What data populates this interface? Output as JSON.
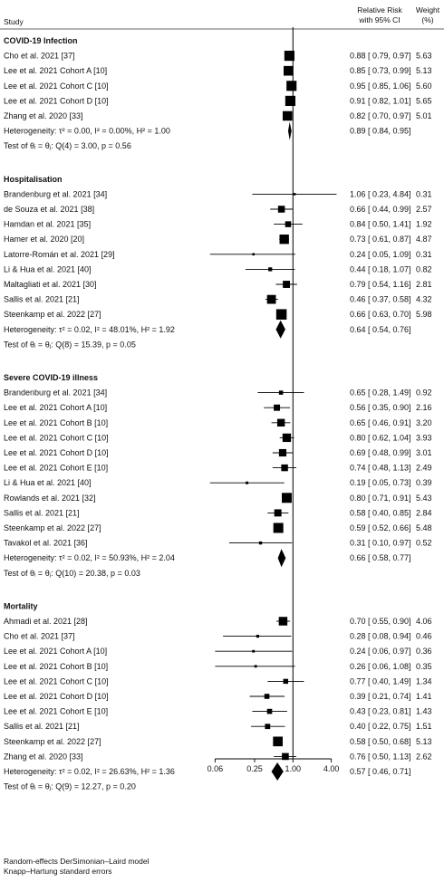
{
  "chart_data": {
    "type": "forest",
    "headers": {
      "study": "Study",
      "effect_line1": "Relative Risk",
      "effect_line2": "with 95% CI",
      "weight_line1": "Weight",
      "weight_line2": "(%)"
    },
    "x_scale": "log",
    "xlim": [
      0.04,
      6.0
    ],
    "null_value": 1.0,
    "ticks": [
      {
        "value": 0.06,
        "label": "0.06"
      },
      {
        "value": 0.25,
        "label": "0.25"
      },
      {
        "value": 1.0,
        "label": "1.00"
      },
      {
        "value": 4.0,
        "label": "4.00"
      }
    ],
    "groups": [
      {
        "name": "COVID-19 Infection",
        "studies": [
          {
            "label": "Cho et al. 2021 [37]",
            "rr": 0.88,
            "lo": 0.79,
            "hi": 0.97,
            "ci": "0.88 [ 0.79, 0.97]",
            "weight": "5.63"
          },
          {
            "label": "Lee et al. 2021 Cohort A [10]",
            "rr": 0.85,
            "lo": 0.73,
            "hi": 0.99,
            "ci": "0.85 [ 0.73, 0.99]",
            "weight": "5.13"
          },
          {
            "label": "Lee et al. 2021 Cohort C [10]",
            "rr": 0.95,
            "lo": 0.85,
            "hi": 1.06,
            "ci": "0.95 [ 0.85, 1.06]",
            "weight": "5.60"
          },
          {
            "label": "Lee et al. 2021 Cohort D [10]",
            "rr": 0.91,
            "lo": 0.82,
            "hi": 1.01,
            "ci": "0.91 [ 0.82, 1.01]",
            "weight": "5.65"
          },
          {
            "label": "Zhang et al. 2020 [33]",
            "rr": 0.82,
            "lo": 0.7,
            "hi": 0.97,
            "ci": "0.82 [ 0.70, 0.97]",
            "weight": "5.01"
          }
        ],
        "heterogeneity": "Heterogeneity: τ² = 0.00, I² = 0.00%, H² = 1.00",
        "pooled": {
          "rr": 0.89,
          "lo": 0.84,
          "hi": 0.95,
          "ci": "0.89 [ 0.84, 0.95]"
        },
        "test": "Test of θᵢ = θⱼ: Q(4) = 3.00, p = 0.56"
      },
      {
        "name": "Hospitalisation",
        "studies": [
          {
            "label": "Brandenburg et al. 2021 [34]",
            "rr": 1.06,
            "lo": 0.23,
            "hi": 4.84,
            "ci": "1.06 [ 0.23, 4.84]",
            "weight": "0.31"
          },
          {
            "label": "de Souza et al. 2021 [38]",
            "rr": 0.66,
            "lo": 0.44,
            "hi": 0.99,
            "ci": "0.66 [ 0.44, 0.99]",
            "weight": "2.57"
          },
          {
            "label": "Hamdan et al. 2021 [35]",
            "rr": 0.84,
            "lo": 0.5,
            "hi": 1.41,
            "ci": "0.84 [ 0.50, 1.41]",
            "weight": "1.92"
          },
          {
            "label": "Hamer et al. 2020 [20]",
            "rr": 0.73,
            "lo": 0.61,
            "hi": 0.87,
            "ci": "0.73 [ 0.61, 0.87]",
            "weight": "4.87"
          },
          {
            "label": "Latorre-Román et al. 2021 [29]",
            "rr": 0.24,
            "lo": 0.05,
            "hi": 1.09,
            "ci": "0.24 [ 0.05, 1.09]",
            "weight": "0.31"
          },
          {
            "label": "Li & Hua et al. 2021 [40]",
            "rr": 0.44,
            "lo": 0.18,
            "hi": 1.07,
            "ci": "0.44 [ 0.18, 1.07]",
            "weight": "0.82"
          },
          {
            "label": "Maltagliati et al. 2021 [30]",
            "rr": 0.79,
            "lo": 0.54,
            "hi": 1.16,
            "ci": "0.79 [ 0.54, 1.16]",
            "weight": "2.81"
          },
          {
            "label": "Sallis et al. 2021 [21]",
            "rr": 0.46,
            "lo": 0.37,
            "hi": 0.58,
            "ci": "0.46 [ 0.37, 0.58]",
            "weight": "4.32"
          },
          {
            "label": "Steenkamp et al. 2022 [27]",
            "rr": 0.66,
            "lo": 0.63,
            "hi": 0.7,
            "ci": "0.66 [ 0.63, 0.70]",
            "weight": "5.98"
          }
        ],
        "heterogeneity": "Heterogeneity: τ² = 0.02, I² = 48.01%, H² = 1.92",
        "pooled": {
          "rr": 0.64,
          "lo": 0.54,
          "hi": 0.76,
          "ci": "0.64 [ 0.54, 0.76]"
        },
        "test": "Test of θᵢ = θⱼ: Q(8) = 15.39, p = 0.05"
      },
      {
        "name": "Severe COVID-19 illness",
        "studies": [
          {
            "label": "Brandenburg et al. 2021 [34]",
            "rr": 0.65,
            "lo": 0.28,
            "hi": 1.49,
            "ci": "0.65 [ 0.28, 1.49]",
            "weight": "0.92"
          },
          {
            "label": "Lee et al. 2021 Cohort A [10]",
            "rr": 0.56,
            "lo": 0.35,
            "hi": 0.9,
            "ci": "0.56 [ 0.35, 0.90]",
            "weight": "2.16"
          },
          {
            "label": "Lee et al. 2021 Cohort B [10]",
            "rr": 0.65,
            "lo": 0.46,
            "hi": 0.91,
            "ci": "0.65 [ 0.46, 0.91]",
            "weight": "3.20"
          },
          {
            "label": "Lee et al. 2021 Cohort C [10]",
            "rr": 0.8,
            "lo": 0.62,
            "hi": 1.04,
            "ci": "0.80 [ 0.62, 1.04]",
            "weight": "3.93"
          },
          {
            "label": "Lee et al. 2021 Cohort D [10]",
            "rr": 0.69,
            "lo": 0.48,
            "hi": 0.99,
            "ci": "0.69 [ 0.48, 0.99]",
            "weight": "3.01"
          },
          {
            "label": "Lee et al. 2021 Cohort E [10]",
            "rr": 0.74,
            "lo": 0.48,
            "hi": 1.13,
            "ci": "0.74 [ 0.48, 1.13]",
            "weight": "2.49"
          },
          {
            "label": "Li & Hua et al. 2021 [40]",
            "rr": 0.19,
            "lo": 0.05,
            "hi": 0.73,
            "ci": "0.19 [ 0.05, 0.73]",
            "weight": "0.39"
          },
          {
            "label": "Rowlands et al. 2021 [32]",
            "rr": 0.8,
            "lo": 0.71,
            "hi": 0.91,
            "ci": "0.80 [ 0.71, 0.91]",
            "weight": "5.43"
          },
          {
            "label": "Sallis et al. 2021 [21]",
            "rr": 0.58,
            "lo": 0.4,
            "hi": 0.85,
            "ci": "0.58 [ 0.40, 0.85]",
            "weight": "2.84"
          },
          {
            "label": "Steenkamp et al. 2022 [27]",
            "rr": 0.59,
            "lo": 0.52,
            "hi": 0.66,
            "ci": "0.59 [ 0.52, 0.66]",
            "weight": "5.48"
          },
          {
            "label": "Tavakol et al. 2021 [36]",
            "rr": 0.31,
            "lo": 0.1,
            "hi": 0.97,
            "ci": "0.31 [ 0.10, 0.97]",
            "weight": "0.52"
          }
        ],
        "heterogeneity": "Heterogeneity: τ² = 0.02, I² = 50.93%, H² = 2.04",
        "pooled": {
          "rr": 0.66,
          "lo": 0.58,
          "hi": 0.77,
          "ci": "0.66 [ 0.58, 0.77]"
        },
        "test": "Test of θᵢ = θⱼ: Q(10) = 20.38, p = 0.03"
      },
      {
        "name": "Mortality",
        "studies": [
          {
            "label": "Ahmadi et al. 2021 [28]",
            "rr": 0.7,
            "lo": 0.55,
            "hi": 0.9,
            "ci": "0.70 [ 0.55, 0.90]",
            "weight": "4.06"
          },
          {
            "label": "Cho et al. 2021 [37]",
            "rr": 0.28,
            "lo": 0.08,
            "hi": 0.94,
            "ci": "0.28 [ 0.08, 0.94]",
            "weight": "0.46"
          },
          {
            "label": "Lee et al. 2021 Cohort A [10]",
            "rr": 0.24,
            "lo": 0.06,
            "hi": 0.97,
            "ci": "0.24 [ 0.06, 0.97]",
            "weight": "0.36"
          },
          {
            "label": "Lee et al. 2021 Cohort B [10]",
            "rr": 0.26,
            "lo": 0.06,
            "hi": 1.08,
            "ci": "0.26 [ 0.06, 1.08]",
            "weight": "0.35"
          },
          {
            "label": "Lee et al. 2021 Cohort C [10]",
            "rr": 0.77,
            "lo": 0.4,
            "hi": 1.49,
            "ci": "0.77 [ 0.40, 1.49]",
            "weight": "1.34"
          },
          {
            "label": "Lee et al. 2021 Cohort D [10]",
            "rr": 0.39,
            "lo": 0.21,
            "hi": 0.74,
            "ci": "0.39 [ 0.21, 0.74]",
            "weight": "1.41"
          },
          {
            "label": "Lee et al. 2021 Cohort E [10]",
            "rr": 0.43,
            "lo": 0.23,
            "hi": 0.81,
            "ci": "0.43 [ 0.23, 0.81]",
            "weight": "1.43"
          },
          {
            "label": "Sallis et al. 2021 [21]",
            "rr": 0.4,
            "lo": 0.22,
            "hi": 0.75,
            "ci": "0.40 [ 0.22, 0.75]",
            "weight": "1.51"
          },
          {
            "label": "Steenkamp et al. 2022 [27]",
            "rr": 0.58,
            "lo": 0.5,
            "hi": 0.68,
            "ci": "0.58 [ 0.50, 0.68]",
            "weight": "5.13"
          },
          {
            "label": "Zhang et al. 2020 [33]",
            "rr": 0.76,
            "lo": 0.5,
            "hi": 1.13,
            "ci": "0.76 [ 0.50, 1.13]",
            "weight": "2.62"
          }
        ],
        "heterogeneity": "Heterogeneity: τ² = 0.02, I² = 26.63%, H² = 1.36",
        "pooled": {
          "rr": 0.57,
          "lo": 0.46,
          "hi": 0.71,
          "ci": "0.57 [ 0.46, 0.71]"
        },
        "test": "Test of θᵢ = θⱼ: Q(9) = 12.27, p = 0.20"
      }
    ]
  },
  "footnote": {
    "line1": "Random-effects DerSimonian–Laird model",
    "line2": "Knapp–Hartung standard errors"
  }
}
